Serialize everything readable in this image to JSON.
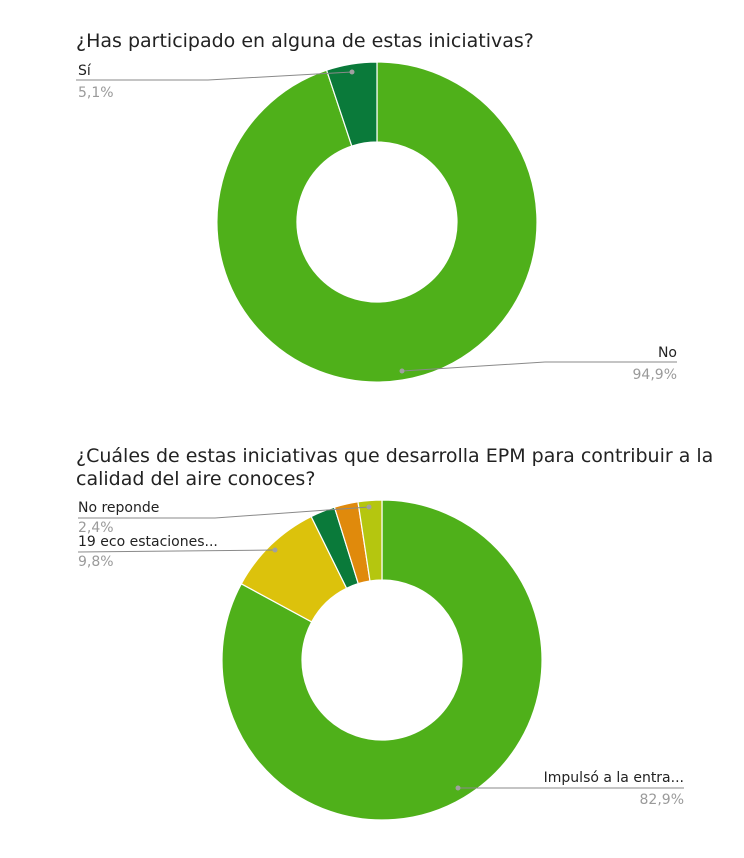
{
  "chart_data": [
    {
      "type": "pie",
      "title": "¿Has participado en alguna de estas iniciativas?",
      "slices": [
        {
          "name": "No",
          "value": 94.9,
          "label": "94,9%",
          "color": "#4fb01a"
        },
        {
          "name": "Sí",
          "value": 5.1,
          "label": "5,1%",
          "color": "#0a7a3a"
        }
      ]
    },
    {
      "type": "pie",
      "title_lines": [
        "¿Cuáles de estas iniciativas que desarrolla EPM para contribuir a la",
        "calidad del aire conoces?"
      ],
      "slices": [
        {
          "name": "Impulsó a la entra...",
          "value": 82.9,
          "label": "82,9%",
          "color": "#4fb01a"
        },
        {
          "name": "19 eco estaciones...",
          "value": 9.8,
          "label": "9,8%",
          "color": "#dcc20c"
        },
        {
          "name": "",
          "value": 2.5,
          "label": "",
          "color": "#0a7a3a"
        },
        {
          "name": "",
          "value": 2.4,
          "label": "",
          "color": "#e08a0c"
        },
        {
          "name": "No reponde",
          "value": 2.4,
          "label": "2,4%",
          "color": "#b5c60f"
        }
      ]
    }
  ]
}
